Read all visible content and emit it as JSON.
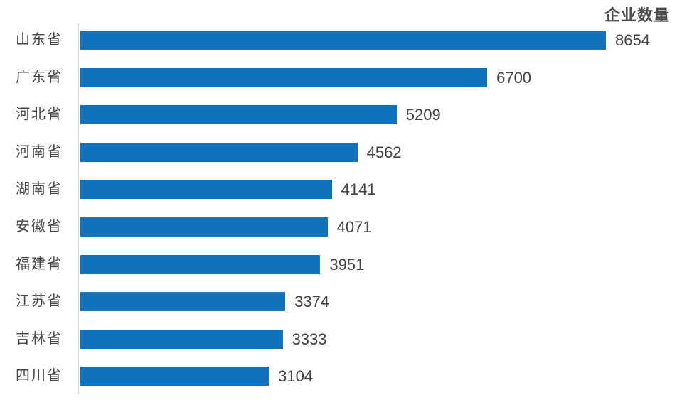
{
  "title": "企业数量",
  "colors": {
    "bar": "#0F72BB",
    "axis_line": "#D9D9D9",
    "value_text": "#404040",
    "category_text": "#444444",
    "title_text": "#4A4A4A",
    "background": "#FFFFFF"
  },
  "chart_data": {
    "type": "bar",
    "orientation": "horizontal",
    "title": "企业数量",
    "categories": [
      "山东省",
      "广东省",
      "河北省",
      "河南省",
      "湖南省",
      "安徽省",
      "福建省",
      "江苏省",
      "吉林省",
      "四川省"
    ],
    "values": [
      8654,
      6700,
      5209,
      4562,
      4141,
      4071,
      3951,
      3374,
      3333,
      3104
    ],
    "xlabel": "",
    "ylabel": "",
    "xlim": [
      0,
      8654
    ],
    "grid": false,
    "legend": "none",
    "data_labels": true,
    "sort_order": "descending"
  }
}
